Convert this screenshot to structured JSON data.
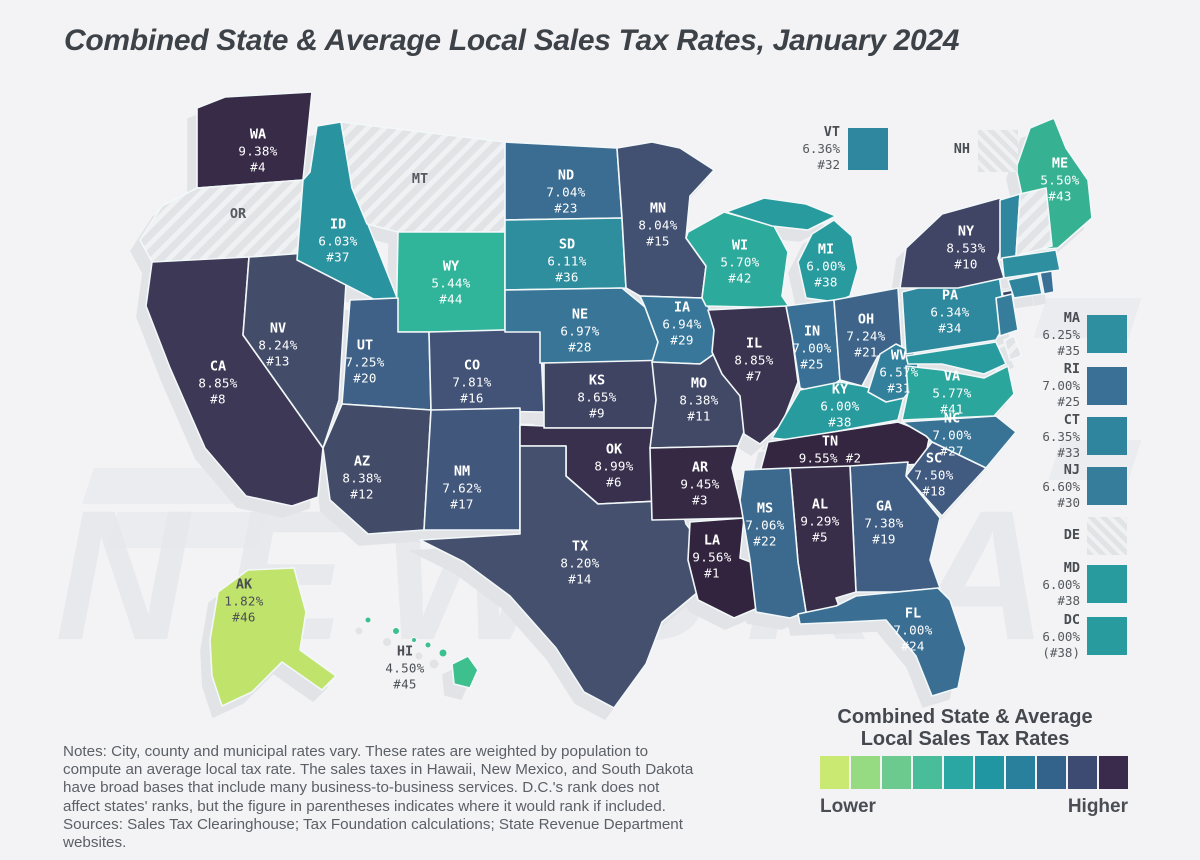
{
  "title": "Combined State & Average Local Sales Tax Rates, January 2024",
  "watermark_text": "NEWSKA",
  "map": {
    "states": {
      "WA": {
        "abbr": "WA",
        "rate": "9.38%",
        "rank": "#4",
        "color": "#372b47"
      },
      "OR": {
        "abbr": "OR",
        "no_data": true
      },
      "CA": {
        "abbr": "CA",
        "rate": "8.85%",
        "rank": "#8",
        "color": "#3d3855"
      },
      "NV": {
        "abbr": "NV",
        "rate": "8.24%",
        "rank": "#13",
        "color": "#434d6a"
      },
      "ID": {
        "abbr": "ID",
        "rate": "6.03%",
        "rank": "#37",
        "color": "#2a93a0"
      },
      "MT": {
        "abbr": "MT",
        "no_data": true
      },
      "WY": {
        "abbr": "WY",
        "rate": "5.44%",
        "rank": "#44",
        "color": "#30b59b"
      },
      "UT": {
        "abbr": "UT",
        "rate": "7.25%",
        "rank": "#20",
        "color": "#3f6187"
      },
      "CO": {
        "abbr": "CO",
        "rate": "7.81%",
        "rank": "#16",
        "color": "#435377"
      },
      "AZ": {
        "abbr": "AZ",
        "rate": "8.38%",
        "rank": "#12",
        "color": "#424b68"
      },
      "NM": {
        "abbr": "NM",
        "rate": "7.62%",
        "rank": "#17",
        "color": "#42577c"
      },
      "ND": {
        "abbr": "ND",
        "rate": "7.04%",
        "rank": "#23",
        "color": "#3b6c91"
      },
      "SD": {
        "abbr": "SD",
        "rate": "6.11%",
        "rank": "#36",
        "color": "#2e8e9e"
      },
      "NE": {
        "abbr": "NE",
        "rate": "6.97%",
        "rank": "#28",
        "color": "#387597"
      },
      "KS": {
        "abbr": "KS",
        "rate": "8.65%",
        "rank": "#9",
        "color": "#3f4463"
      },
      "OK": {
        "abbr": "OK",
        "rate": "8.99%",
        "rank": "#6",
        "color": "#39304d"
      },
      "TX": {
        "abbr": "TX",
        "rate": "8.20%",
        "rank": "#14",
        "color": "#44506d"
      },
      "MN": {
        "abbr": "MN",
        "rate": "8.04%",
        "rank": "#15",
        "color": "#425072"
      },
      "IA": {
        "abbr": "IA",
        "rate": "6.94%",
        "rank": "#29",
        "color": "#38779a"
      },
      "MO": {
        "abbr": "MO",
        "rate": "8.38%",
        "rank": "#11",
        "color": "#424967"
      },
      "AR": {
        "abbr": "AR",
        "rate": "9.45%",
        "rank": "#3",
        "color": "#352944"
      },
      "LA": {
        "abbr": "LA",
        "rate": "9.56%",
        "rank": "#1",
        "color": "#32243e"
      },
      "WI": {
        "abbr": "WI",
        "rate": "5.70%",
        "rank": "#42",
        "color": "#2caa9b"
      },
      "IL": {
        "abbr": "IL",
        "rate": "8.85%",
        "rank": "#7",
        "color": "#3b3451"
      },
      "IN": {
        "abbr": "IN",
        "rate": "7.00%",
        "rank": "#25",
        "color": "#3a7095"
      },
      "OH": {
        "abbr": "OH",
        "rate": "7.24%",
        "rank": "#21",
        "color": "#3e648a"
      },
      "MI": {
        "abbr": "MI",
        "rate": "6.00%",
        "rank": "#38",
        "color": "#289b9e"
      },
      "KY": {
        "abbr": "KY",
        "rate": "6.00%",
        "rank": "#38",
        "color": "#289b9e"
      },
      "TN": {
        "abbr": "TN",
        "rate": "9.55%",
        "rank": "#2",
        "color": "#342641"
      },
      "MS": {
        "abbr": "MS",
        "rate": "7.06%",
        "rank": "#22",
        "color": "#3c6a8f"
      },
      "AL": {
        "abbr": "AL",
        "rate": "9.29%",
        "rank": "#5",
        "color": "#382e4a"
      },
      "GA": {
        "abbr": "GA",
        "rate": "7.38%",
        "rank": "#19",
        "color": "#405e84"
      },
      "FL": {
        "abbr": "FL",
        "rate": "7.00%",
        "rank": "#24",
        "color": "#3a6e93"
      },
      "SC": {
        "abbr": "SC",
        "rate": "7.50%",
        "rank": "#18",
        "color": "#415a80"
      },
      "NC": {
        "abbr": "NC",
        "rate": "7.00%",
        "rank": "#27",
        "color": "#387295"
      },
      "VA": {
        "abbr": "VA",
        "rate": "5.77%",
        "rank": "#41",
        "color": "#2aa69c"
      },
      "WV": {
        "abbr": "WV",
        "rate": "6.57%",
        "rank": "#31",
        "color": "#33809c"
      },
      "PA": {
        "abbr": "PA",
        "rate": "6.34%",
        "rank": "#34",
        "color": "#2e889e"
      },
      "NY": {
        "abbr": "NY",
        "rate": "8.53%",
        "rank": "#10",
        "color": "#404566"
      },
      "ME": {
        "abbr": "ME",
        "rate": "5.50%",
        "rank": "#43",
        "color": "#36b293"
      },
      "VT": {
        "abbr": "VT",
        "rate": "6.36%",
        "rank": "#32",
        "color": "#2f879f"
      },
      "NH": {
        "abbr": "NH",
        "no_data": true
      },
      "MA": {
        "abbr": "MA",
        "rate": "6.25%",
        "rank": "#35",
        "color": "#2e8fa0"
      },
      "RI": {
        "abbr": "RI",
        "rate": "7.00%",
        "rank": "#25",
        "color": "#3a7095"
      },
      "CT": {
        "abbr": "CT",
        "rate": "6.35%",
        "rank": "#33",
        "color": "#30859e"
      },
      "NJ": {
        "abbr": "NJ",
        "rate": "6.60%",
        "rank": "#30",
        "color": "#357d9a"
      },
      "DE": {
        "abbr": "DE",
        "no_data": true
      },
      "MD": {
        "abbr": "MD",
        "rate": "6.00%",
        "rank": "#38",
        "color": "#289b9e"
      },
      "DC": {
        "abbr": "DC",
        "rate": "6.00%",
        "rank": "(#38)",
        "color": "#289b9e"
      },
      "AK": {
        "abbr": "AK",
        "rate": "1.82%",
        "rank": "#46",
        "color": "#c0e36c"
      },
      "HI": {
        "abbr": "HI",
        "rate": "4.50%",
        "rank": "#45",
        "color": "#3ebf8e"
      }
    }
  },
  "legend": {
    "title_line1": "Combined State & Average",
    "title_line2": "Local Sales Tax Rates",
    "lower_label": "Lower",
    "higher_label": "Higher",
    "colors": [
      "#c9e973",
      "#96da82",
      "#6cca8f",
      "#49bd9a",
      "#2aa7a2",
      "#1f96a1",
      "#28809c",
      "#33638b",
      "#3d4a72",
      "#3a2b4d"
    ]
  },
  "notes_lines": [
    "Notes: City, county and municipal rates vary. These rates are weighted by population to",
    "compute an average local tax rate. The sales taxes in Hawaii, New Mexico, and South Dakota",
    "have broad bases that include many business-to-business services. D.C.'s rank does not",
    "affect states' ranks, but the figure in parentheses indicates where it would rank if included.",
    "Sources: Sales Tax Clearinghouse; Tax Foundation calculations; State Revenue Department",
    "websites."
  ]
}
